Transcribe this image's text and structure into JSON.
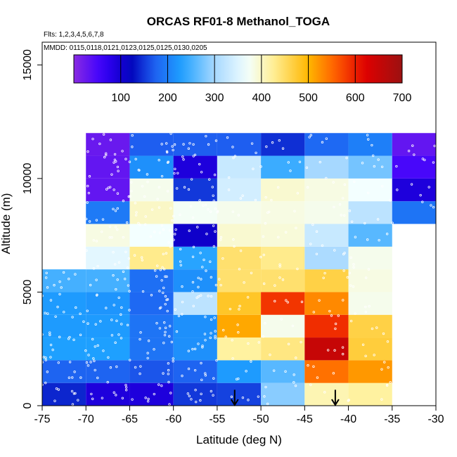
{
  "chart_data": {
    "type": "heatmap",
    "title": "ORCAS RF01-8 Methanol_TOGA",
    "flights_note": "Flts: 1,2,3,4,5,6,7,8",
    "dates_note": "MMDD: 0115,0118,0121,0123,0125,0125,0130,0205",
    "xlabel": "Latitude (deg N)",
    "ylabel": "Altitude (m)",
    "xlim": [
      -75,
      -30
    ],
    "ylim": [
      0,
      16000
    ],
    "x_ticks": [
      -75,
      -70,
      -65,
      -60,
      -55,
      -50,
      -45,
      -40,
      -35,
      -30
    ],
    "x_tick_labels": [
      "-75",
      "-70",
      "-65",
      "-60",
      "-55",
      "-50",
      "-45",
      "-40",
      "-35",
      "-30"
    ],
    "y_ticks": [
      0,
      5000,
      10000,
      15000
    ],
    "y_tick_labels": [
      "0",
      "5000",
      "10000",
      "15000"
    ],
    "colorbar": {
      "min": 0,
      "max": 700,
      "ticks": [
        100,
        200,
        300,
        400,
        500,
        600,
        700
      ],
      "tick_labels": [
        "100",
        "200",
        "300",
        "400",
        "500",
        "600",
        "700"
      ]
    },
    "bin_width_deg": 5,
    "bin_height_m": 1000,
    "bins": [
      {
        "lat": -75,
        "alt": 0,
        "value": 140
      },
      {
        "lat": -70,
        "alt": 0,
        "value": 90
      },
      {
        "lat": -65,
        "alt": 0,
        "value": 90
      },
      {
        "lat": -60,
        "alt": 0,
        "value": 150
      },
      {
        "lat": -55,
        "alt": 0,
        "value": 155
      },
      {
        "lat": -50,
        "alt": 0,
        "value": 285
      },
      {
        "lat": -45,
        "alt": 0,
        "value": 410
      },
      {
        "lat": -40,
        "alt": 0,
        "value": 420
      },
      {
        "lat": -75,
        "alt": 1000,
        "value": 175
      },
      {
        "lat": -70,
        "alt": 1000,
        "value": 175
      },
      {
        "lat": -65,
        "alt": 1000,
        "value": 165
      },
      {
        "lat": -60,
        "alt": 1000,
        "value": 175
      },
      {
        "lat": -55,
        "alt": 1000,
        "value": 225
      },
      {
        "lat": -50,
        "alt": 1000,
        "value": 260
      },
      {
        "lat": -45,
        "alt": 1000,
        "value": 545
      },
      {
        "lat": -40,
        "alt": 1000,
        "value": 520
      },
      {
        "lat": -75,
        "alt": 2000,
        "value": 230
      },
      {
        "lat": -70,
        "alt": 2000,
        "value": 230
      },
      {
        "lat": -65,
        "alt": 2000,
        "value": 190
      },
      {
        "lat": -60,
        "alt": 2000,
        "value": 215
      },
      {
        "lat": -55,
        "alt": 2000,
        "value": 420
      },
      {
        "lat": -50,
        "alt": 2000,
        "value": 435
      },
      {
        "lat": -45,
        "alt": 2000,
        "value": 650
      },
      {
        "lat": -40,
        "alt": 2000,
        "value": 470
      },
      {
        "lat": -75,
        "alt": 3000,
        "value": 225
      },
      {
        "lat": -70,
        "alt": 3000,
        "value": 225
      },
      {
        "lat": -65,
        "alt": 3000,
        "value": 190
      },
      {
        "lat": -60,
        "alt": 3000,
        "value": 215
      },
      {
        "lat": -55,
        "alt": 3000,
        "value": 510
      },
      {
        "lat": -50,
        "alt": 3000,
        "value": 380
      },
      {
        "lat": -45,
        "alt": 3000,
        "value": 590
      },
      {
        "lat": -40,
        "alt": 3000,
        "value": 465
      },
      {
        "lat": -75,
        "alt": 4000,
        "value": 225
      },
      {
        "lat": -70,
        "alt": 4000,
        "value": 220
      },
      {
        "lat": -65,
        "alt": 4000,
        "value": 180
      },
      {
        "lat": -60,
        "alt": 4000,
        "value": 320
      },
      {
        "lat": -55,
        "alt": 4000,
        "value": 480
      },
      {
        "lat": -50,
        "alt": 4000,
        "value": 585
      },
      {
        "lat": -45,
        "alt": 4000,
        "value": 530
      },
      {
        "lat": -40,
        "alt": 4000,
        "value": 380
      },
      {
        "lat": -75,
        "alt": 5000,
        "value": 250
      },
      {
        "lat": -70,
        "alt": 5000,
        "value": 250
      },
      {
        "lat": -65,
        "alt": 5000,
        "value": 185
      },
      {
        "lat": -60,
        "alt": 5000,
        "value": 215
      },
      {
        "lat": -55,
        "alt": 5000,
        "value": 445
      },
      {
        "lat": -50,
        "alt": 5000,
        "value": 445
      },
      {
        "lat": -45,
        "alt": 5000,
        "value": 465
      },
      {
        "lat": -40,
        "alt": 5000,
        "value": 385
      },
      {
        "lat": -70,
        "alt": 6000,
        "value": 355
      },
      {
        "lat": -65,
        "alt": 6000,
        "value": 430
      },
      {
        "lat": -60,
        "alt": 6000,
        "value": 235
      },
      {
        "lat": -55,
        "alt": 6000,
        "value": 445
      },
      {
        "lat": -50,
        "alt": 6000,
        "value": 430
      },
      {
        "lat": -45,
        "alt": 6000,
        "value": 305
      },
      {
        "lat": -40,
        "alt": 6000,
        "value": 380
      },
      {
        "lat": -70,
        "alt": 7000,
        "value": 385
      },
      {
        "lat": -65,
        "alt": 7000,
        "value": 370
      },
      {
        "lat": -60,
        "alt": 7000,
        "value": 105
      },
      {
        "lat": -55,
        "alt": 7000,
        "value": 395
      },
      {
        "lat": -50,
        "alt": 7000,
        "value": 390
      },
      {
        "lat": -45,
        "alt": 7000,
        "value": 330
      },
      {
        "lat": -40,
        "alt": 7000,
        "value": 260
      },
      {
        "lat": -70,
        "alt": 8000,
        "value": 195
      },
      {
        "lat": -65,
        "alt": 8000,
        "value": 400
      },
      {
        "lat": -60,
        "alt": 8000,
        "value": 375
      },
      {
        "lat": -55,
        "alt": 8000,
        "value": 380
      },
      {
        "lat": -50,
        "alt": 8000,
        "value": 385
      },
      {
        "lat": -45,
        "alt": 8000,
        "value": 380
      },
      {
        "lat": -40,
        "alt": 8000,
        "value": 320
      },
      {
        "lat": -35,
        "alt": 8000,
        "value": 190
      },
      {
        "lat": -70,
        "alt": 9000,
        "value": 30
      },
      {
        "lat": -65,
        "alt": 9000,
        "value": 380
      },
      {
        "lat": -60,
        "alt": 9000,
        "value": 150
      },
      {
        "lat": -55,
        "alt": 9000,
        "value": 340
      },
      {
        "lat": -50,
        "alt": 9000,
        "value": 395
      },
      {
        "lat": -45,
        "alt": 9000,
        "value": 385
      },
      {
        "lat": -40,
        "alt": 9000,
        "value": 370
      },
      {
        "lat": -35,
        "alt": 9000,
        "value": 90
      },
      {
        "lat": -70,
        "alt": 10000,
        "value": 30
      },
      {
        "lat": -65,
        "alt": 10000,
        "value": 215
      },
      {
        "lat": -60,
        "alt": 10000,
        "value": 90
      },
      {
        "lat": -55,
        "alt": 10000,
        "value": 330
      },
      {
        "lat": -50,
        "alt": 10000,
        "value": 245
      },
      {
        "lat": -45,
        "alt": 10000,
        "value": 300
      },
      {
        "lat": -40,
        "alt": 10000,
        "value": 275
      },
      {
        "lat": -35,
        "alt": 10000,
        "value": 50
      },
      {
        "lat": -70,
        "alt": 11000,
        "value": 25
      },
      {
        "lat": -65,
        "alt": 11000,
        "value": 170
      },
      {
        "lat": -60,
        "alt": 11000,
        "value": 170
      },
      {
        "lat": -55,
        "alt": 11000,
        "value": 170
      },
      {
        "lat": -50,
        "alt": 11000,
        "value": 145
      },
      {
        "lat": -45,
        "alt": 11000,
        "value": 180
      },
      {
        "lat": -40,
        "alt": 11000,
        "value": 200
      },
      {
        "lat": -35,
        "alt": 11000,
        "value": 30
      }
    ],
    "markers": [
      {
        "type": "arrow",
        "lat": -53,
        "alt_top": 700,
        "alt_bottom": 0
      },
      {
        "type": "arrow",
        "lat": -41.5,
        "alt_top": 700,
        "alt_bottom": 0
      }
    ]
  }
}
